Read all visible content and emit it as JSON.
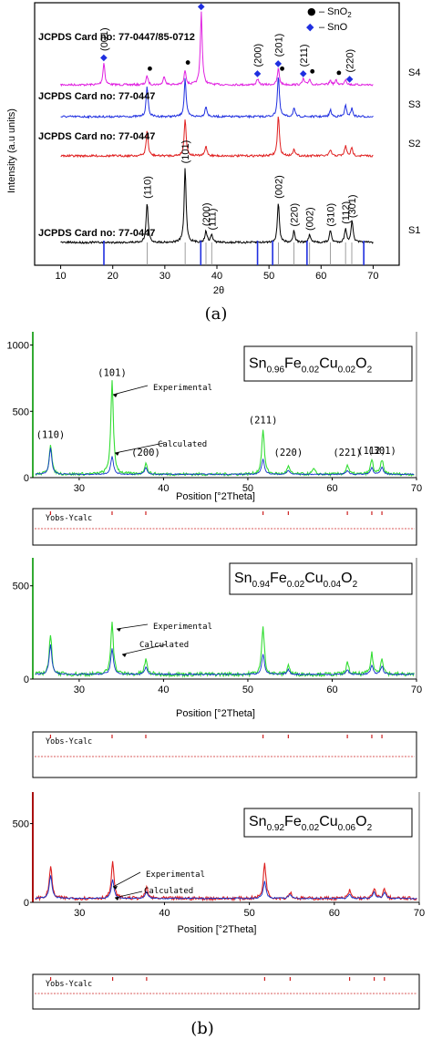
{
  "chart_data": [
    {
      "type": "line",
      "title": "",
      "xlabel": "2θ",
      "ylabel": "Intensity (a.u units)",
      "xlim": [
        5,
        75
      ],
      "x_ticks": [
        "10",
        "20",
        "30",
        "40",
        "50",
        "60",
        "70"
      ],
      "panel_label": "(a)",
      "series": [
        {
          "name": "S4",
          "color": "#e020e0",
          "card": "JCPDS Card no: 77-0447/85-0712",
          "peaks": [
            [
              18.3,
              0.3
            ],
            [
              26.6,
              0.12
            ],
            [
              29.9,
              0.12
            ],
            [
              33.9,
              0.2
            ],
            [
              37.0,
              1.0
            ],
            [
              47.8,
              0.08
            ],
            [
              51.8,
              0.22
            ],
            [
              56.6,
              0.08
            ],
            [
              57.8,
              0.08
            ],
            [
              61.8,
              0.06
            ],
            [
              62.9,
              0.06
            ],
            [
              64.7,
              0.08
            ]
          ]
        },
        {
          "name": "S3",
          "color": "#1f2fe0",
          "card": "JCPDS Card no: 77-0447",
          "peaks": [
            [
              26.6,
              0.55
            ],
            [
              33.9,
              0.7
            ],
            [
              37.9,
              0.2
            ],
            [
              51.8,
              0.75
            ],
            [
              54.8,
              0.15
            ],
            [
              61.8,
              0.12
            ],
            [
              64.7,
              0.2
            ],
            [
              65.9,
              0.15
            ]
          ]
        },
        {
          "name": "S2",
          "color": "#e02020",
          "card": "JCPDS Card no: 77-0447",
          "peaks": [
            [
              26.6,
              0.5
            ],
            [
              33.9,
              0.75
            ],
            [
              37.9,
              0.2
            ],
            [
              51.8,
              0.8
            ],
            [
              54.8,
              0.15
            ],
            [
              61.8,
              0.12
            ],
            [
              64.7,
              0.2
            ],
            [
              65.9,
              0.15
            ]
          ]
        },
        {
          "name": "S1",
          "color": "#000000",
          "card": "JCPDS Card no: 77-0447",
          "peaks": [
            [
              26.6,
              0.4
            ],
            [
              33.9,
              0.75
            ],
            [
              37.9,
              0.12
            ],
            [
              39.0,
              0.08
            ],
            [
              51.8,
              0.4
            ],
            [
              54.8,
              0.12
            ],
            [
              57.8,
              0.08
            ],
            [
              61.8,
              0.12
            ],
            [
              64.7,
              0.14
            ],
            [
              65.9,
              0.12
            ],
            [
              66.0,
              0.1
            ]
          ]
        }
      ],
      "peak_labels": [
        {
          "series": "S4",
          "x": 18.3,
          "text": "(001)",
          "marker": "sno"
        },
        {
          "series": "S4",
          "x": 26.6,
          "text": "",
          "marker": "sno2"
        },
        {
          "series": "S4",
          "x": 33.9,
          "text": "",
          "marker": "sno2"
        },
        {
          "series": "S4",
          "x": 37.0,
          "text": "(002)",
          "marker": "sno"
        },
        {
          "series": "S4",
          "x": 47.8,
          "text": "(200)",
          "marker": "sno"
        },
        {
          "series": "S4",
          "x": 51.8,
          "text": "(201)",
          "marker": "sno"
        },
        {
          "series": "S4",
          "x": 52.0,
          "text": "",
          "marker": "sno2"
        },
        {
          "series": "S4",
          "x": 56.6,
          "text": "(211)",
          "marker": "sno"
        },
        {
          "series": "S4",
          "x": 57.8,
          "text": "",
          "marker": "sno2"
        },
        {
          "series": "S4",
          "x": 62.9,
          "text": "",
          "marker": "sno2"
        },
        {
          "series": "S4",
          "x": 65.5,
          "text": "(220)",
          "marker": "sno"
        },
        {
          "series": "S1",
          "x": 26.6,
          "text": "(110)"
        },
        {
          "series": "S1",
          "x": 33.9,
          "text": "(101)"
        },
        {
          "series": "S1",
          "x": 37.9,
          "text": "(200)"
        },
        {
          "series": "S1",
          "x": 39.0,
          "text": "(111)"
        },
        {
          "series": "S1",
          "x": 51.8,
          "text": "(002)"
        },
        {
          "series": "S1",
          "x": 54.8,
          "text": "(220)"
        },
        {
          "series": "S1",
          "x": 57.8,
          "text": "(002)"
        },
        {
          "series": "S1",
          "x": 61.8,
          "text": "(310)"
        },
        {
          "series": "S1",
          "x": 64.7,
          "text": "(112)"
        },
        {
          "series": "S1",
          "x": 65.9,
          "text": "(301)"
        }
      ],
      "legend": [
        {
          "symbol": "●",
          "text": "– SnO",
          "sub": "2",
          "color": "#000000"
        },
        {
          "symbol": "◆",
          "text": "– SnO",
          "sub": "",
          "color": "#1f2fe0"
        }
      ],
      "reference_lines_blue": [
        18.3,
        36.9,
        47.8,
        50.7,
        57.3,
        68.2
      ],
      "reference_lines_gray": [
        26.6,
        33.9,
        37.9,
        39.0,
        51.8,
        54.8,
        57.8,
        61.8,
        64.7,
        65.9
      ]
    },
    {
      "type": "line",
      "title": "",
      "xlabel": "Position [°2Theta]",
      "ylabel": "",
      "xlim": [
        24.5,
        70
      ],
      "ylim": [
        0,
        1100
      ],
      "y_ticks": [
        "0",
        "500",
        "1000"
      ],
      "x_ticks": [
        "30",
        "40",
        "50",
        "60",
        "70"
      ],
      "composition": {
        "base": "Sn",
        "s1": "0.96",
        "e2": "Fe",
        "s2": "0.02",
        "e3": "Cu",
        "s3": "0.02",
        "e4": "O",
        "s4": "2"
      },
      "series": [
        {
          "name": "Experimental",
          "color": "#33dd33",
          "peaks": [
            [
              26.6,
              230
            ],
            [
              33.9,
              700
            ],
            [
              37.9,
              90
            ],
            [
              51.8,
              340
            ],
            [
              54.8,
              60
            ],
            [
              57.8,
              40
            ],
            [
              61.8,
              70
            ],
            [
              64.7,
              110
            ],
            [
              65.9,
              110
            ]
          ]
        },
        {
          "name": "Calculated",
          "color": "#1133cc",
          "peaks": [
            [
              26.6,
              200
            ],
            [
              33.9,
              140
            ],
            [
              37.9,
              50
            ],
            [
              51.8,
              120
            ],
            [
              54.8,
              30
            ],
            [
              61.8,
              30
            ],
            [
              64.7,
              50
            ],
            [
              65.9,
              50
            ]
          ]
        }
      ],
      "peak_labels": [
        {
          "x": 26.6,
          "text": "(110)"
        },
        {
          "x": 33.9,
          "text": "(101)"
        },
        {
          "x": 37.9,
          "text": "(200)"
        },
        {
          "x": 51.8,
          "text": "(211)"
        },
        {
          "x": 54.8,
          "text": "(220)"
        },
        {
          "x": 61.8,
          "text": "(221)"
        },
        {
          "x": 64.7,
          "text": "(112)"
        },
        {
          "x": 65.9,
          "text": "(301)"
        }
      ],
      "annotations": [
        "Experimental",
        "Calculated"
      ],
      "residual_label": "Yobs-Ycalc"
    },
    {
      "type": "line",
      "title": "",
      "xlabel": "Position [°2Theta]",
      "ylabel": "",
      "xlim": [
        24.5,
        70
      ],
      "ylim": [
        0,
        650
      ],
      "y_ticks": [
        "0",
        "500"
      ],
      "x_ticks": [
        "30",
        "40",
        "50",
        "60",
        "70"
      ],
      "composition": {
        "base": "Sn",
        "s1": "0.94",
        "e2": "Fe",
        "s2": "0.02",
        "e3": "Cu",
        "s3": "0.04",
        "e4": "O",
        "s4": "2"
      },
      "series": [
        {
          "name": "Experimental",
          "color": "#33dd33",
          "peaks": [
            [
              26.6,
              210
            ],
            [
              33.9,
              290
            ],
            [
              37.9,
              80
            ],
            [
              51.8,
              260
            ],
            [
              54.8,
              50
            ],
            [
              61.8,
              60
            ],
            [
              64.7,
              110
            ],
            [
              65.9,
              90
            ]
          ]
        },
        {
          "name": "Calculated",
          "color": "#1133cc",
          "peaks": [
            [
              26.6,
              160
            ],
            [
              33.9,
              140
            ],
            [
              37.9,
              40
            ],
            [
              51.8,
              110
            ],
            [
              54.8,
              25
            ],
            [
              61.8,
              25
            ],
            [
              64.7,
              45
            ],
            [
              65.9,
              45
            ]
          ]
        }
      ],
      "annotations": [
        "Experimental",
        "Calculated"
      ],
      "residual_label": "Yobs-Ycalc"
    },
    {
      "type": "line",
      "title": "",
      "xlabel": "Position [°2Theta]",
      "ylabel": "",
      "xlim": [
        24.5,
        70
      ],
      "ylim": [
        0,
        700
      ],
      "y_ticks": [
        "0",
        "500"
      ],
      "x_ticks": [
        "30",
        "40",
        "50",
        "60",
        "70"
      ],
      "composition": {
        "base": "Sn",
        "s1": "0.92",
        "e2": "Fe",
        "s2": "0.02",
        "e3": "Cu",
        "s3": "0.06",
        "e4": "O",
        "s4": "2"
      },
      "series": [
        {
          "name": "Experimental",
          "color": "#dd2020",
          "peaks": [
            [
              26.6,
              210
            ],
            [
              33.9,
              230
            ],
            [
              37.9,
              70
            ],
            [
              51.8,
              230
            ],
            [
              54.8,
              40
            ],
            [
              61.8,
              50
            ],
            [
              64.7,
              60
            ],
            [
              65.9,
              60
            ]
          ]
        },
        {
          "name": "Calculated",
          "color": "#1133cc",
          "peaks": [
            [
              26.6,
              150
            ],
            [
              33.9,
              120
            ],
            [
              37.9,
              40
            ],
            [
              51.8,
              110
            ],
            [
              54.8,
              25
            ],
            [
              61.8,
              25
            ],
            [
              64.7,
              40
            ],
            [
              65.9,
              40
            ]
          ]
        }
      ],
      "annotations": [
        "Experimental",
        "Calculated"
      ],
      "residual_label": "Yobs-Ycalc",
      "panel_label": "(b)"
    }
  ]
}
